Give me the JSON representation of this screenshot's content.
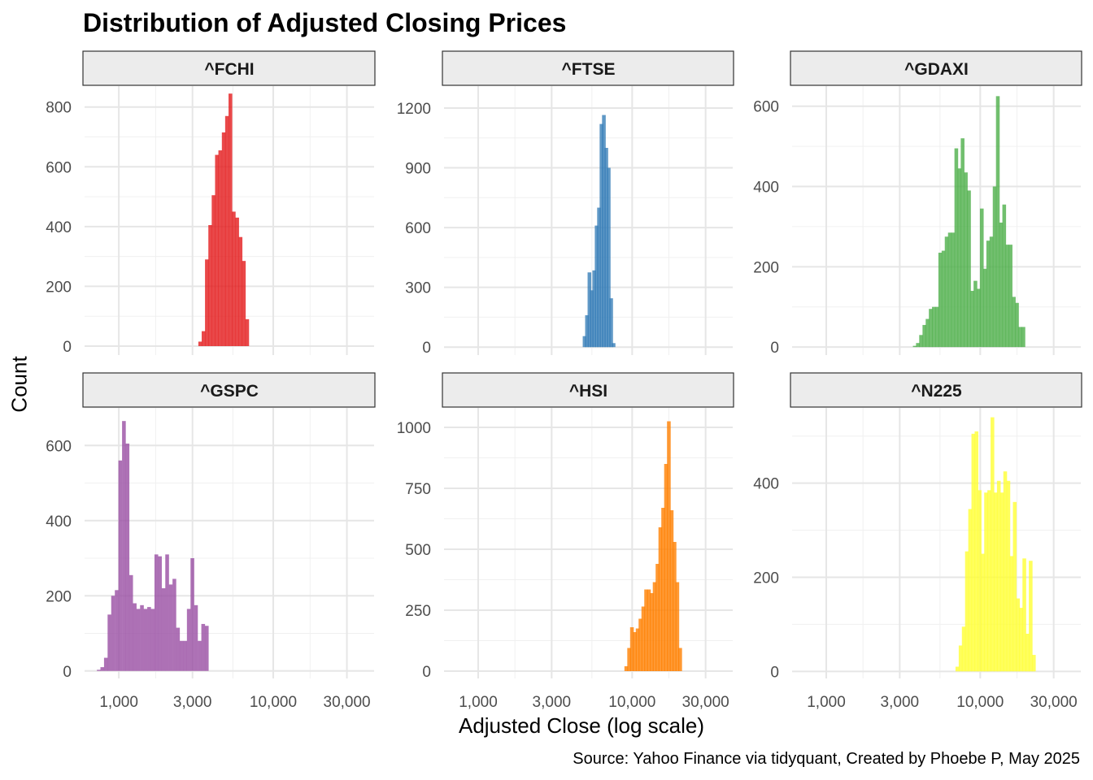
{
  "title": "Distribution of Adjusted Closing Prices",
  "xlabel": "Adjusted Close (log scale)",
  "ylabel": "Count",
  "caption": "Source: Yahoo Finance via tidyquant, Created by Phoebe P, May 2025",
  "x_ticks": [
    {
      "value": 1000,
      "label": "1,000"
    },
    {
      "value": 3000,
      "label": "3,000"
    },
    {
      "value": 10000,
      "label": "10,000"
    },
    {
      "value": 30000,
      "label": "30,000"
    }
  ],
  "chart_data": {
    "type": "bar",
    "subtype": "faceted-histogram",
    "x_scale": "log10",
    "xlim": [
      600,
      45000
    ],
    "grid": true,
    "legend": "none",
    "facets": [
      {
        "name": "^FCHI",
        "color": "#E41A1C",
        "ylim": [
          -30,
          870
        ],
        "y_ticks": [
          0,
          200,
          400,
          600,
          800
        ],
        "bins": [
          {
            "x": 3360,
            "count": 15
          },
          {
            "x": 3530,
            "count": 50
          },
          {
            "x": 3710,
            "count": 290
          },
          {
            "x": 3900,
            "count": 405
          },
          {
            "x": 4100,
            "count": 505
          },
          {
            "x": 4310,
            "count": 640
          },
          {
            "x": 4530,
            "count": 655
          },
          {
            "x": 4770,
            "count": 715
          },
          {
            "x": 5010,
            "count": 770
          },
          {
            "x": 5270,
            "count": 845
          },
          {
            "x": 5540,
            "count": 450
          },
          {
            "x": 5830,
            "count": 430
          },
          {
            "x": 6130,
            "count": 365
          },
          {
            "x": 6440,
            "count": 285
          },
          {
            "x": 6770,
            "count": 90
          }
        ]
      },
      {
        "name": "^FTSE",
        "color": "#377EB8",
        "ylim": [
          -40,
          1310
        ],
        "y_ticks": [
          0,
          300,
          600,
          900,
          1200
        ],
        "bins": [
          {
            "x": 4900,
            "count": 55
          },
          {
            "x": 5080,
            "count": 160
          },
          {
            "x": 5270,
            "count": 375
          },
          {
            "x": 5460,
            "count": 285
          },
          {
            "x": 5660,
            "count": 385
          },
          {
            "x": 5870,
            "count": 610
          },
          {
            "x": 6080,
            "count": 700
          },
          {
            "x": 6310,
            "count": 1120
          },
          {
            "x": 6540,
            "count": 1165
          },
          {
            "x": 6780,
            "count": 1000
          },
          {
            "x": 7030,
            "count": 900
          },
          {
            "x": 7290,
            "count": 245
          },
          {
            "x": 7560,
            "count": 20
          }
        ]
      },
      {
        "name": "^GDAXI",
        "color": "#4DAF4A",
        "ylim": [
          -20,
          650
        ],
        "y_ticks": [
          0,
          200,
          400,
          600
        ],
        "bins": [
          {
            "x": 3750,
            "count": 3
          },
          {
            "x": 3930,
            "count": 10
          },
          {
            "x": 4120,
            "count": 30
          },
          {
            "x": 4330,
            "count": 55
          },
          {
            "x": 4540,
            "count": 70
          },
          {
            "x": 4760,
            "count": 95
          },
          {
            "x": 4990,
            "count": 100
          },
          {
            "x": 5240,
            "count": 100
          },
          {
            "x": 5490,
            "count": 235
          },
          {
            "x": 5760,
            "count": 240
          },
          {
            "x": 6040,
            "count": 275
          },
          {
            "x": 6340,
            "count": 285
          },
          {
            "x": 6650,
            "count": 285
          },
          {
            "x": 6980,
            "count": 495
          },
          {
            "x": 7320,
            "count": 445
          },
          {
            "x": 7670,
            "count": 520
          },
          {
            "x": 8050,
            "count": 435
          },
          {
            "x": 8440,
            "count": 390
          },
          {
            "x": 8860,
            "count": 140
          },
          {
            "x": 9290,
            "count": 165
          },
          {
            "x": 9750,
            "count": 145
          },
          {
            "x": 10220,
            "count": 345
          },
          {
            "x": 10720,
            "count": 195
          },
          {
            "x": 11250,
            "count": 265
          },
          {
            "x": 11800,
            "count": 275
          },
          {
            "x": 12380,
            "count": 400
          },
          {
            "x": 12990,
            "count": 625
          },
          {
            "x": 13620,
            "count": 310
          },
          {
            "x": 14290,
            "count": 355
          },
          {
            "x": 14990,
            "count": 255
          },
          {
            "x": 15720,
            "count": 255
          },
          {
            "x": 16500,
            "count": 125
          },
          {
            "x": 17300,
            "count": 110
          },
          {
            "x": 18150,
            "count": 50
          },
          {
            "x": 19040,
            "count": 50
          }
        ]
      },
      {
        "name": "^GSPC",
        "color": "#984EA3",
        "ylim": [
          -20,
          700
        ],
        "y_ticks": [
          0,
          200,
          400,
          600
        ],
        "bins": [
          {
            "x": 740,
            "count": 3
          },
          {
            "x": 780,
            "count": 10
          },
          {
            "x": 823,
            "count": 35
          },
          {
            "x": 868,
            "count": 150
          },
          {
            "x": 916,
            "count": 200
          },
          {
            "x": 967,
            "count": 215
          },
          {
            "x": 1020,
            "count": 560
          },
          {
            "x": 1077,
            "count": 665
          },
          {
            "x": 1136,
            "count": 605
          },
          {
            "x": 1199,
            "count": 255
          },
          {
            "x": 1265,
            "count": 180
          },
          {
            "x": 1335,
            "count": 165
          },
          {
            "x": 1409,
            "count": 175
          },
          {
            "x": 1486,
            "count": 165
          },
          {
            "x": 1568,
            "count": 170
          },
          {
            "x": 1655,
            "count": 165
          },
          {
            "x": 1746,
            "count": 310
          },
          {
            "x": 1843,
            "count": 305
          },
          {
            "x": 1945,
            "count": 220
          },
          {
            "x": 2052,
            "count": 310
          },
          {
            "x": 2165,
            "count": 230
          },
          {
            "x": 2285,
            "count": 245
          },
          {
            "x": 2411,
            "count": 115
          },
          {
            "x": 2544,
            "count": 80
          },
          {
            "x": 2685,
            "count": 80
          },
          {
            "x": 2833,
            "count": 165
          },
          {
            "x": 2989,
            "count": 300
          },
          {
            "x": 3154,
            "count": 175
          },
          {
            "x": 3329,
            "count": 80
          },
          {
            "x": 3512,
            "count": 125
          },
          {
            "x": 3706,
            "count": 120
          }
        ]
      },
      {
        "name": "^HSI",
        "color": "#FF7F00",
        "ylim": [
          -30,
          1080
        ],
        "y_ticks": [
          0,
          250,
          500,
          750,
          1000
        ],
        "bins": [
          {
            "x": 9140,
            "count": 20
          },
          {
            "x": 9540,
            "count": 95
          },
          {
            "x": 9950,
            "count": 180
          },
          {
            "x": 10380,
            "count": 160
          },
          {
            "x": 10830,
            "count": 175
          },
          {
            "x": 11300,
            "count": 215
          },
          {
            "x": 11790,
            "count": 265
          },
          {
            "x": 12300,
            "count": 335
          },
          {
            "x": 12830,
            "count": 335
          },
          {
            "x": 13390,
            "count": 320
          },
          {
            "x": 13970,
            "count": 365
          },
          {
            "x": 14580,
            "count": 440
          },
          {
            "x": 15210,
            "count": 590
          },
          {
            "x": 15870,
            "count": 670
          },
          {
            "x": 16560,
            "count": 850
          },
          {
            "x": 17280,
            "count": 1025
          },
          {
            "x": 18030,
            "count": 660
          },
          {
            "x": 18810,
            "count": 530
          },
          {
            "x": 19620,
            "count": 365
          },
          {
            "x": 20470,
            "count": 95
          }
        ]
      },
      {
        "name": "^N225",
        "color": "#FFFF33",
        "ylim": [
          -15,
          560
        ],
        "y_ticks": [
          0,
          200,
          400
        ],
        "bins": [
          {
            "x": 7090,
            "count": 10
          },
          {
            "x": 7440,
            "count": 55
          },
          {
            "x": 7800,
            "count": 95
          },
          {
            "x": 8180,
            "count": 255
          },
          {
            "x": 8580,
            "count": 345
          },
          {
            "x": 9000,
            "count": 505
          },
          {
            "x": 9440,
            "count": 510
          },
          {
            "x": 9900,
            "count": 385
          },
          {
            "x": 10380,
            "count": 250
          },
          {
            "x": 10890,
            "count": 380
          },
          {
            "x": 11420,
            "count": 385
          },
          {
            "x": 11980,
            "count": 540
          },
          {
            "x": 12570,
            "count": 380
          },
          {
            "x": 13180,
            "count": 405
          },
          {
            "x": 13830,
            "count": 380
          },
          {
            "x": 14500,
            "count": 425
          },
          {
            "x": 15210,
            "count": 405
          },
          {
            "x": 15950,
            "count": 245
          },
          {
            "x": 16730,
            "count": 360
          },
          {
            "x": 17550,
            "count": 155
          },
          {
            "x": 18400,
            "count": 135
          },
          {
            "x": 19300,
            "count": 240
          },
          {
            "x": 20240,
            "count": 80
          },
          {
            "x": 21230,
            "count": 235
          },
          {
            "x": 22270,
            "count": 35
          }
        ]
      }
    ]
  }
}
